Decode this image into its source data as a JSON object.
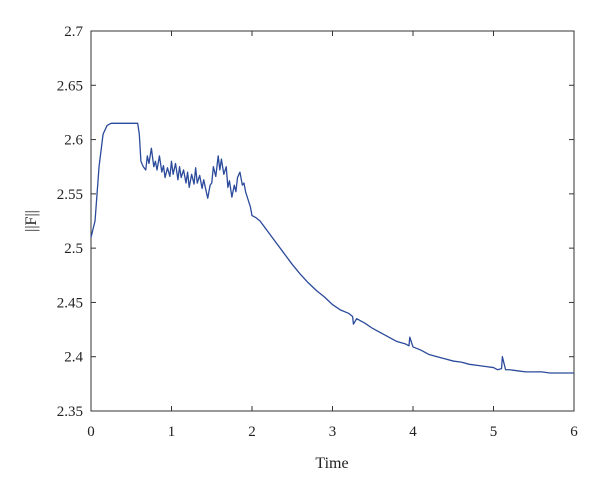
{
  "chart_data": {
    "type": "line",
    "title": "",
    "xlabel": "Time",
    "ylabel": "||F||",
    "xlim": [
      0,
      6
    ],
    "ylim": [
      2.35,
      2.7
    ],
    "x_ticks": [
      0,
      1,
      2,
      3,
      4,
      5,
      6
    ],
    "x_tick_labels": [
      "0",
      "1",
      "2",
      "3",
      "4",
      "5",
      "6"
    ],
    "y_ticks": [
      2.35,
      2.4,
      2.45,
      2.5,
      2.55,
      2.6,
      2.65,
      2.7
    ],
    "y_tick_labels": [
      "2.35",
      "2.4",
      "2.45",
      "2.5",
      "2.55",
      "2.6",
      "2.65",
      "2.7"
    ],
    "grid": false,
    "box": true,
    "line_color": "#2b4a9b",
    "series": [
      {
        "x": [
          0,
          0.05,
          0.1,
          0.15,
          0.2,
          0.25,
          0.3,
          0.4,
          0.5,
          0.58,
          0.6,
          0.62,
          0.65,
          0.68,
          0.7,
          0.72,
          0.75,
          0.78,
          0.8,
          0.82,
          0.85,
          0.88,
          0.9,
          0.92,
          0.95,
          0.98,
          1.0,
          1.02,
          1.05,
          1.08,
          1.1,
          1.12,
          1.15,
          1.18,
          1.2,
          1.22,
          1.25,
          1.28,
          1.3,
          1.32,
          1.35,
          1.38,
          1.4,
          1.42,
          1.45,
          1.48,
          1.5,
          1.52,
          1.55,
          1.58,
          1.6,
          1.62,
          1.65,
          1.68,
          1.7,
          1.72,
          1.75,
          1.78,
          1.8,
          1.82,
          1.85,
          1.88,
          1.9,
          1.92,
          1.95,
          1.98,
          2.0,
          2.05,
          2.1,
          2.15,
          2.2,
          2.3,
          2.4,
          2.5,
          2.6,
          2.7,
          2.8,
          2.9,
          3.0,
          3.1,
          3.2,
          3.25,
          3.26,
          3.3,
          3.4,
          3.5,
          3.6,
          3.7,
          3.8,
          3.9,
          3.95,
          3.96,
          4.0,
          4.1,
          4.2,
          4.3,
          4.4,
          4.5,
          4.6,
          4.7,
          4.8,
          4.9,
          5.0,
          5.05,
          5.1,
          5.11,
          5.15,
          5.2,
          5.3,
          5.4,
          5.5,
          5.6,
          5.7,
          5.8,
          5.9,
          6.0
        ],
        "y": [
          2.51,
          2.525,
          2.575,
          2.605,
          2.613,
          2.615,
          2.615,
          2.615,
          2.615,
          2.615,
          2.605,
          2.58,
          2.575,
          2.572,
          2.585,
          2.578,
          2.592,
          2.575,
          2.58,
          2.572,
          2.585,
          2.57,
          2.576,
          2.565,
          2.574,
          2.566,
          2.58,
          2.568,
          2.578,
          2.563,
          2.575,
          2.565,
          2.572,
          2.56,
          2.57,
          2.556,
          2.568,
          2.559,
          2.574,
          2.56,
          2.567,
          2.555,
          2.563,
          2.556,
          2.546,
          2.558,
          2.56,
          2.575,
          2.566,
          2.585,
          2.572,
          2.582,
          2.568,
          2.575,
          2.556,
          2.562,
          2.547,
          2.558,
          2.552,
          2.565,
          2.57,
          2.558,
          2.56,
          2.552,
          2.545,
          2.538,
          2.53,
          2.528,
          2.525,
          2.52,
          2.515,
          2.505,
          2.495,
          2.485,
          2.476,
          2.468,
          2.461,
          2.455,
          2.448,
          2.443,
          2.44,
          2.437,
          2.43,
          2.435,
          2.431,
          2.426,
          2.422,
          2.418,
          2.414,
          2.412,
          2.41,
          2.418,
          2.409,
          2.406,
          2.402,
          2.4,
          2.398,
          2.396,
          2.395,
          2.393,
          2.392,
          2.391,
          2.39,
          2.388,
          2.389,
          2.4,
          2.388,
          2.388,
          2.387,
          2.386,
          2.386,
          2.386,
          2.385,
          2.385,
          2.385,
          2.385
        ]
      }
    ]
  }
}
